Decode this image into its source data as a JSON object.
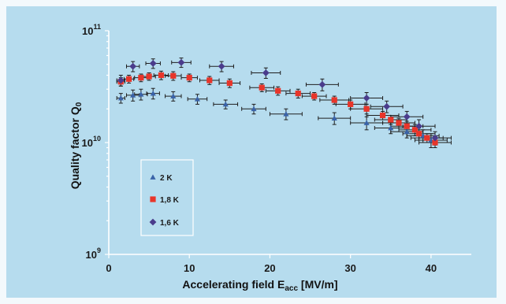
{
  "chart_data": {
    "type": "scatter",
    "title": "",
    "xlabel": "Accelerating field E",
    "xlabel_sub": "acc",
    "xlabel_unit": " [MV/m]",
    "ylabel": "Quality factor Q",
    "ylabel_sub": "0",
    "xlim": [
      0,
      45
    ],
    "ylim": [
      1000000000.0,
      100000000000.0
    ],
    "y_scale": "log",
    "x_ticks": [
      "0",
      "10",
      "20",
      "30",
      "40"
    ],
    "x_tick_values": [
      0,
      10,
      20,
      30,
      40
    ],
    "y_ticks": [
      {
        "base": "10",
        "exp": "9",
        "value": 1000000000.0
      },
      {
        "base": "10",
        "exp": "10",
        "value": 10000000000.0
      },
      {
        "base": "10",
        "exp": "11",
        "value": 100000000000.0
      }
    ],
    "grid": false,
    "legend_position": "lower-left",
    "series": [
      {
        "name": "2 K",
        "marker": "triangle",
        "color": "#3a63a8",
        "x": [
          1.5,
          3,
          4,
          5.5,
          8,
          11,
          14.5,
          18,
          22,
          28,
          32,
          35,
          37,
          39,
          40
        ],
        "y": [
          25000000000.0,
          26500000000.0,
          27000000000.0,
          27500000000.0,
          26000000000.0,
          24500000000.0,
          22000000000.0,
          20000000000.0,
          18000000000.0,
          16500000000.0,
          15000000000.0,
          13500000000.0,
          12500000000.0,
          11500000000.0,
          10500000000.0
        ],
        "xerr": [
          0.5,
          0.8,
          0.8,
          0.8,
          1,
          1.2,
          1.5,
          1.5,
          2,
          2,
          2,
          2,
          2,
          2,
          2
        ],
        "yerr": [
          2500000000.0,
          3000000000.0,
          3000000000.0,
          3000000000.0,
          2500000000.0,
          2500000000.0,
          2000000000.0,
          2000000000.0,
          2000000000.0,
          2000000000.0,
          2000000000.0,
          1500000000.0,
          1500000000.0,
          1500000000.0,
          1500000000.0
        ]
      },
      {
        "name": "1,8 K",
        "marker": "square",
        "color": "#e8352a",
        "x": [
          1.5,
          2.5,
          4,
          5,
          6.5,
          8,
          10,
          12.5,
          15,
          19,
          21,
          23.5,
          25.5,
          28,
          30,
          32,
          34,
          35,
          36,
          37,
          38,
          38.5,
          39.5,
          40.5
        ],
        "y": [
          35000000000.0,
          37000000000.0,
          38000000000.0,
          39000000000.0,
          40000000000.0,
          39500000000.0,
          38000000000.0,
          36000000000.0,
          34000000000.0,
          31000000000.0,
          29000000000.0,
          27500000000.0,
          26000000000.0,
          24000000000.0,
          22000000000.0,
          20000000000.0,
          17500000000.0,
          16000000000.0,
          15000000000.0,
          14000000000.0,
          13000000000.0,
          12000000000.0,
          11000000000.0,
          10000000000.0
        ],
        "xerr": [
          0.5,
          0.6,
          0.8,
          0.8,
          0.9,
          1,
          1,
          1.2,
          1.3,
          1.5,
          1.5,
          1.5,
          1.5,
          1.8,
          1.8,
          2,
          2,
          2,
          2,
          2,
          2,
          2,
          2,
          2
        ],
        "yerr": [
          3000000000.0,
          3000000000.0,
          3000000000.0,
          3000000000.0,
          3500000000.0,
          3500000000.0,
          3000000000.0,
          3000000000.0,
          3000000000.0,
          2500000000.0,
          2500000000.0,
          2500000000.0,
          2000000000.0,
          2000000000.0,
          2000000000.0,
          2000000000.0,
          1500000000.0,
          1500000000.0,
          1500000000.0,
          1500000000.0,
          1500000000.0,
          1500000000.0,
          1000000000.0,
          1000000000.0
        ]
      },
      {
        "name": "1,6 K",
        "marker": "diamond",
        "color": "#4a3c8c",
        "x": [
          1.5,
          3,
          5.5,
          9,
          14,
          19.5,
          26.5,
          32,
          34.5,
          37,
          38.5,
          40.5
        ],
        "y": [
          36000000000.0,
          48000000000.0,
          51000000000.0,
          52000000000.0,
          48000000000.0,
          42000000000.0,
          33000000000.0,
          25000000000.0,
          21000000000.0,
          17000000000.0,
          14000000000.0,
          11000000000.0
        ],
        "xerr": [
          0.5,
          0.8,
          0.9,
          1.2,
          1.5,
          1.8,
          2,
          2,
          2,
          2,
          2,
          2
        ],
        "yerr": [
          4000000000.0,
          5000000000.0,
          5000000000.0,
          5000000000.0,
          5000000000.0,
          4500000000.0,
          4000000000.0,
          3000000000.0,
          2500000000.0,
          2000000000.0,
          2000000000.0,
          1500000000.0
        ]
      }
    ]
  }
}
